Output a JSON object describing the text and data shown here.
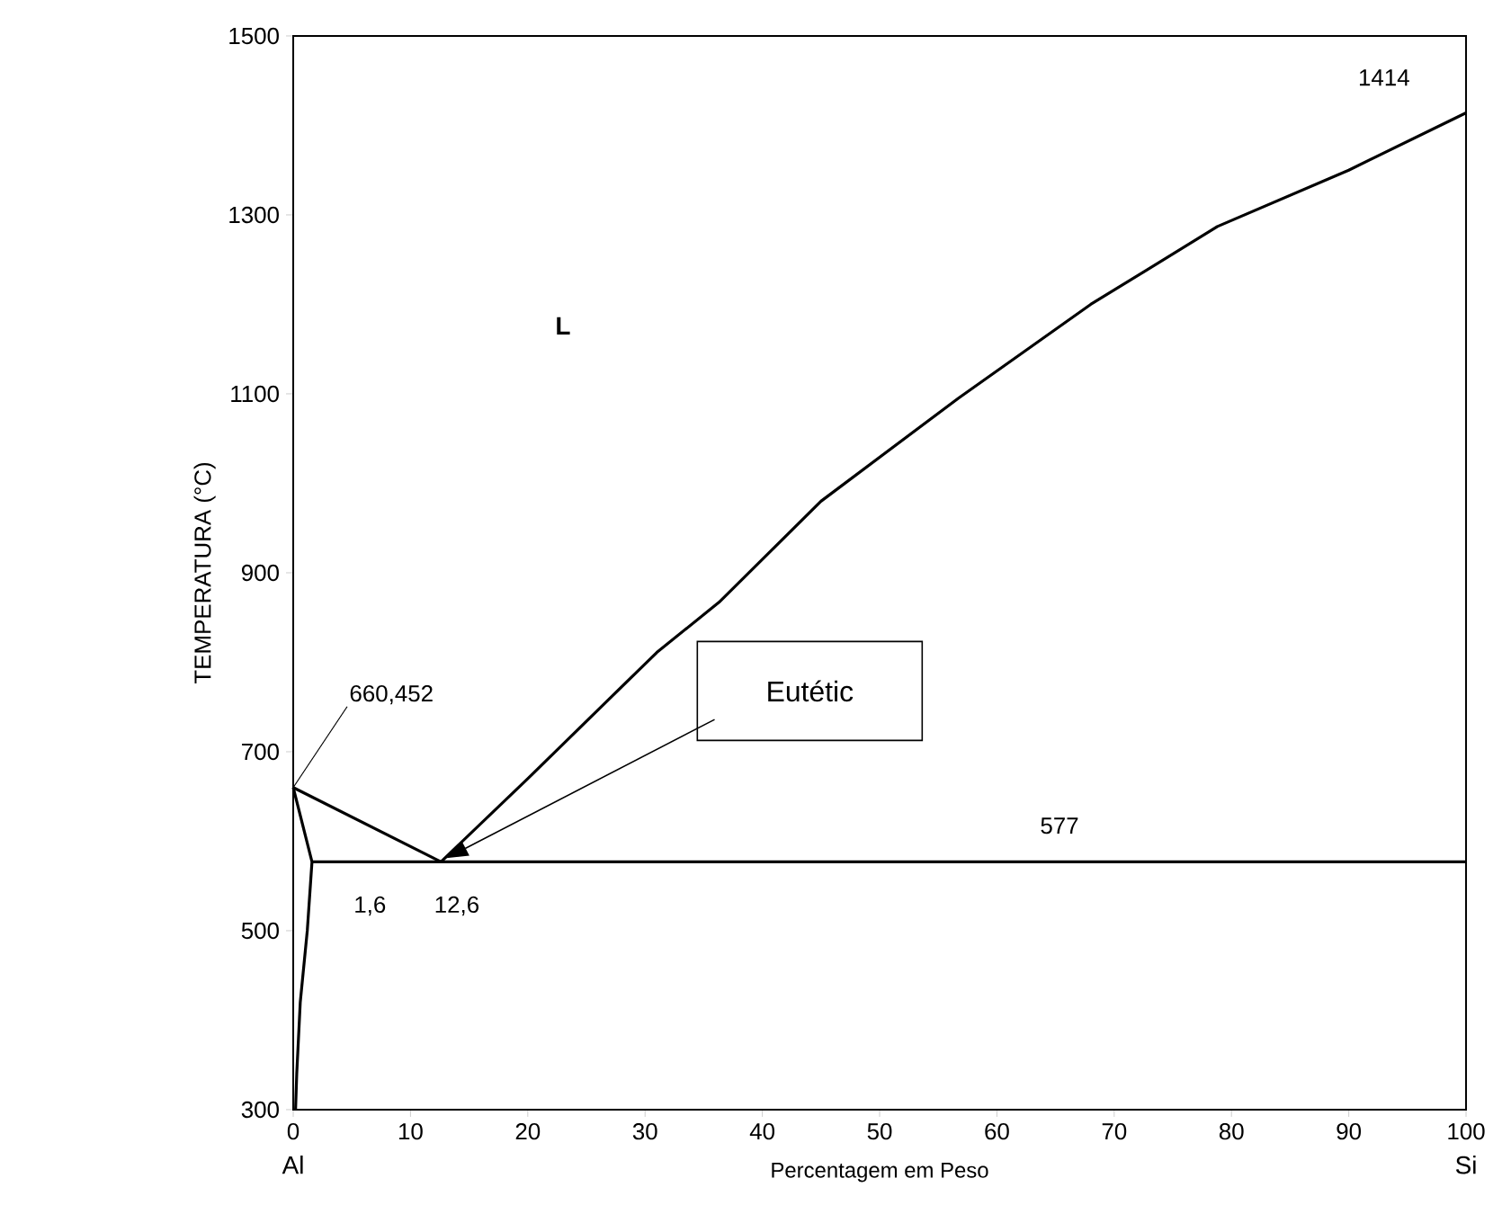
{
  "chart_data": {
    "type": "line",
    "xlabel": "Percentagem em Peso",
    "ylabel": "TEMPERATURA (°C)",
    "xlim": [
      0,
      100
    ],
    "ylim": [
      300,
      1500
    ],
    "xticks": [
      0,
      10,
      20,
      30,
      40,
      50,
      60,
      70,
      80,
      90,
      100
    ],
    "yticks": [
      300,
      500,
      700,
      900,
      1100,
      1300,
      1500
    ],
    "grid": false,
    "marker": "none",
    "line_style": "solid",
    "series": [
      {
        "color": "#000000",
        "x": [
          0,
          12.6
        ],
        "values": [
          660,
          577
        ]
      },
      {
        "color": "#000000",
        "x": [
          12.6,
          20,
          31,
          36.3,
          45,
          56.7,
          68,
          78.8,
          90,
          100
        ],
        "values": [
          577,
          670,
          811,
          867,
          980,
          1095,
          1200,
          1287,
          1350,
          1414
        ]
      },
      {
        "color": "#000000",
        "x": [
          1.6,
          100
        ],
        "values": [
          577,
          577
        ]
      },
      {
        "color": "#000000",
        "x": [
          0,
          1.6,
          1.2,
          0.6,
          0.3,
          0.2
        ],
        "values": [
          660,
          577,
          500,
          420,
          340,
          300
        ]
      }
    ],
    "annotations": [
      {
        "text": "660,452",
        "x": 0,
        "y": 660
      },
      {
        "text": "1,6",
        "x": 1.6,
        "y": 577
      },
      {
        "text": "12,6",
        "x": 12.6,
        "y": 577
      },
      "577",
      {
        "text": "1414",
        "x": 100,
        "y": 1414
      },
      "L",
      "Eutétic",
      "Al",
      "Si"
    ]
  }
}
